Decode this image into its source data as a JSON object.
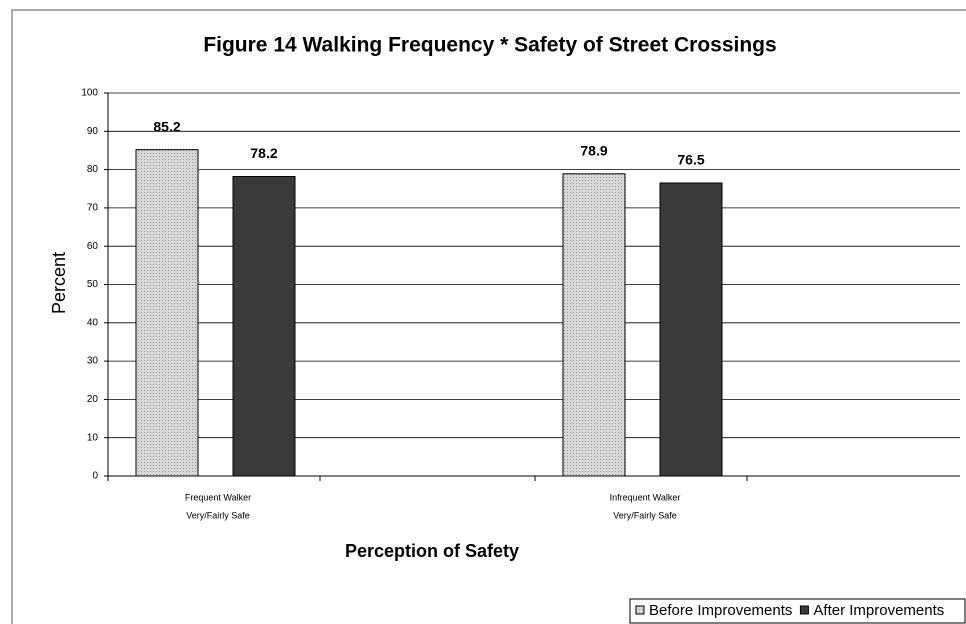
{
  "chart_data": {
    "type": "bar",
    "title": "Figure 14   Walking Frequency * Safety of Street Crossings",
    "x_label": "Perception of Safety",
    "y_label": "Percent",
    "categories": [
      [
        "Frequent Walker",
        "Very/Fairly Safe"
      ],
      [
        "Infrequent Walker",
        "Very/Fairly Safe"
      ]
    ],
    "series": [
      {
        "name": "Before Improvements",
        "color": "#cfcfcf",
        "values": [
          85.2,
          78.9
        ]
      },
      {
        "name": "After Improvements",
        "color": "#3a3a3a",
        "values": [
          78.2,
          76.5
        ]
      }
    ],
    "ylim": [
      0,
      100
    ],
    "yticks": [
      0,
      10,
      20,
      30,
      40,
      50,
      60,
      70,
      80,
      90,
      100
    ],
    "grid": true,
    "legend": "bottom-right"
  }
}
